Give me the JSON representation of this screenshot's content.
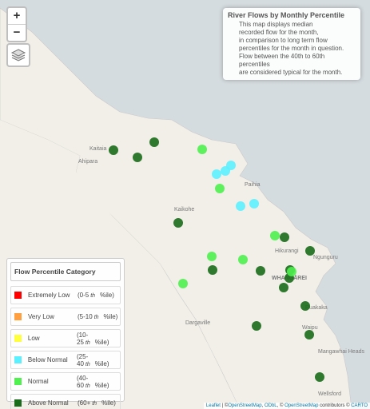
{
  "info": {
    "title": "River Flows by Monthly Percentile",
    "lines": [
      "This map displays median",
      "recorded flow for the month,",
      "in comparison to long term flow",
      "percentiles for the month in question.",
      "Flow between the 40th to 60th percentiles",
      "are considered typical for the month."
    ]
  },
  "zoom": {
    "in": "+",
    "out": "−"
  },
  "legend": {
    "title": "Flow Percentile Category",
    "items": [
      {
        "color": "#ff0000",
        "label": "Extremely Low",
        "range_start": "(0-5",
        "ordinal": "th",
        "range_end": "%ile)"
      },
      {
        "color": "#ff9f40",
        "label": "Very Low",
        "range_start": "(5-10",
        "ordinal": "th",
        "range_end": "%ile)"
      },
      {
        "color": "#ffff40",
        "label": "Low",
        "range_start": "(10-25",
        "ordinal": "th",
        "range_end": "%ile)"
      },
      {
        "color": "#5cf0ff",
        "label": "Below Normal",
        "range_start": "(25-40",
        "ordinal": "th",
        "range_end": "%ile)"
      },
      {
        "color": "#4ff04f",
        "label": "Normal",
        "range_start": "(40-60",
        "ordinal": "th",
        "range_end": "%ile)"
      },
      {
        "color": "#1a6b1a",
        "label": "Above Normal",
        "range_start": "(60+",
        "ordinal": "th",
        "range_end": "%ile)"
      }
    ]
  },
  "places": [
    "Kaitaia",
    "Ahipara",
    "Paihia",
    "Kaikohe",
    "Hikurangi",
    "Ngunguru",
    "WHANGĀREI",
    "Dargaville",
    "Ruakaka",
    "Waipu",
    "Mangawhai Heads",
    "Wellsford"
  ],
  "attribution": {
    "leaflet": "Leaflet",
    "sep1": "|",
    "c1": "©",
    "osm": "OpenStreetMap",
    "comma": ",",
    "odbl": "ODbL",
    "c2": ", ©",
    "osm2": "OpenStreetMap",
    "contrib": "contributors ©",
    "carto": "CARTO"
  }
}
